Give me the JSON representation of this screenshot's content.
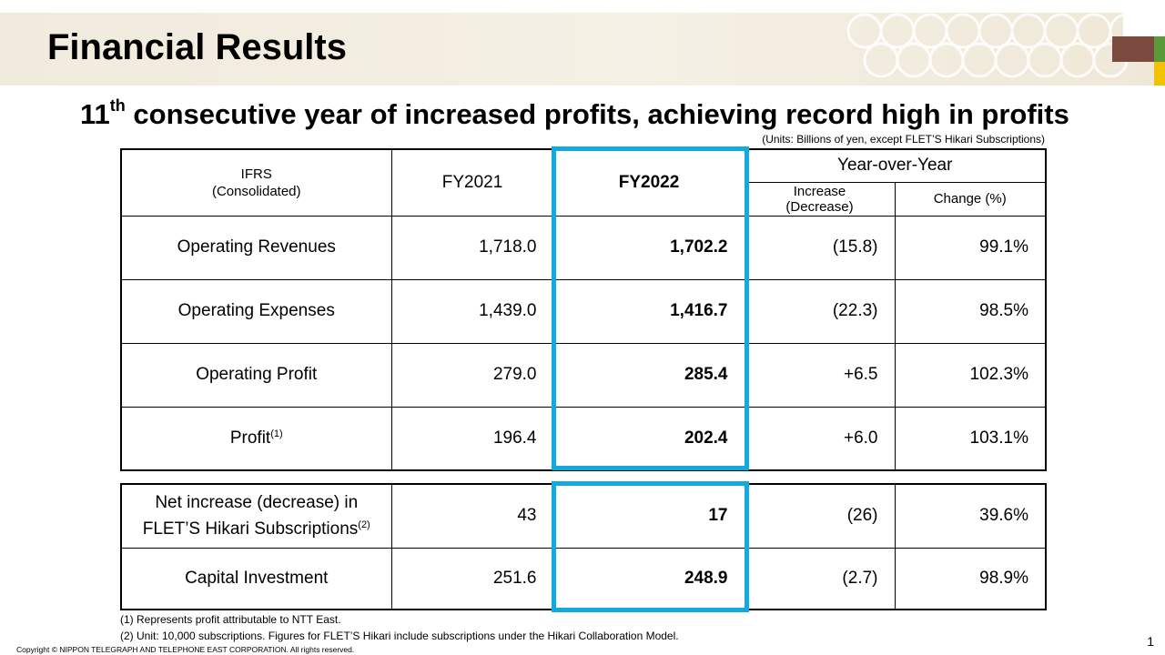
{
  "header": {
    "title": "Financial Results"
  },
  "subtitle": {
    "prefix": "11",
    "sup": "th",
    "rest": " consecutive year of increased profits, achieving record high in profits"
  },
  "units_note": "(Units: Billions of yen, except FLET’S Hikari Subscriptions)",
  "table": {
    "header": {
      "ifrs": "IFRS",
      "consolidated": "(Consolidated)",
      "fy2021": "FY2021",
      "fy2022": "FY2022",
      "yoy": "Year-over-Year",
      "increase": "Increase",
      "decrease": "(Decrease)",
      "change": "Change (%)"
    },
    "rows": [
      {
        "label": "Operating Revenues",
        "fy2021": "1,718.0",
        "fy2022": "1,702.2",
        "diff": "(15.8)",
        "change": "99.1%"
      },
      {
        "label": "Operating Expenses",
        "fy2021": "1,439.0",
        "fy2022": "1,416.7",
        "diff": "(22.3)",
        "change": "98.5%"
      },
      {
        "label": "Operating Profit",
        "fy2021": "279.0",
        "fy2022": "285.4",
        "diff": "+6.5",
        "change": "102.3%"
      },
      {
        "label": "Profit",
        "note": "(1)",
        "fy2021": "196.4",
        "fy2022": "202.4",
        "diff": "+6.0",
        "change": "103.1%"
      }
    ],
    "rows2": [
      {
        "label_line1": "Net increase (decrease) in",
        "label_line2": "FLET’S Hikari Subscriptions",
        "note": "(2)",
        "fy2021": "43",
        "fy2022": "17",
        "diff": "(26)",
        "change": "39.6%"
      },
      {
        "label": "Capital Investment",
        "fy2021": "251.6",
        "fy2022": "248.9",
        "diff": "(2.7)",
        "change": "98.9%"
      }
    ]
  },
  "footnotes": {
    "fn1": "(1) Represents profit attributable to NTT East.",
    "fn2": "(2) Unit: 10,000 subscriptions. Figures for FLET’S Hikari include subscriptions under the Hikari Collaboration Model."
  },
  "footer": {
    "copyright": "Copyright © NIPPON TELEGRAPH AND TELEPHONE EAST CORPORATION. All rights reserved.",
    "page_number": "1"
  },
  "colors": {
    "highlight": "#12a8e0",
    "banner": "#f1ebdd",
    "deco_brown": "#7b4a3f",
    "deco_green": "#5a9a3a",
    "deco_yellow": "#f2c200"
  }
}
